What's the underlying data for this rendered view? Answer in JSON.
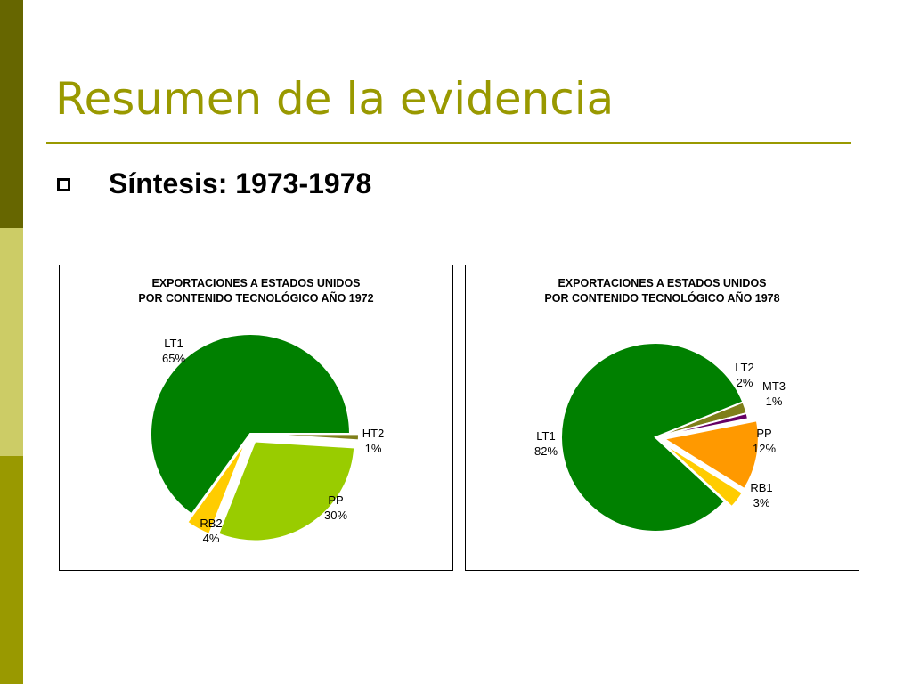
{
  "sidebar": {
    "colors": [
      "#666600",
      "#cccc66",
      "#999900"
    ]
  },
  "slide": {
    "title": "Resumen de la evidencia",
    "title_color": "#999900",
    "rule_color": "#999900",
    "bullet": "Síntesis: 1973-1978"
  },
  "chart_data": [
    {
      "type": "pie",
      "title": "EXPORTACIONES A ESTADOS UNIDOS",
      "subtitle": "POR CONTENIDO TECNOLÓGICO AÑO 1972",
      "start_angle_deg": 0,
      "slices": [
        {
          "label": "HT2",
          "value": 1,
          "display": "1%",
          "color": "#7f7f1a",
          "explode": 1
        },
        {
          "label": "PP",
          "value": 30,
          "display": "30%",
          "color": "#99cc00",
          "explode": 1
        },
        {
          "label": "RB2",
          "value": 4,
          "display": "4%",
          "color": "#ffcc00",
          "explode": 1
        },
        {
          "label": "LT1",
          "value": 65,
          "display": "65%",
          "color": "#008000",
          "explode": 0
        }
      ]
    },
    {
      "type": "pie",
      "title": "EXPORTACIONES A ESTADOS UNIDOS",
      "subtitle": "POR CONTENIDO TECNOLÓGICO AÑO 1978",
      "start_angle_deg": -22,
      "slices": [
        {
          "label": "LT2",
          "value": 2,
          "display": "2%",
          "color": "#7f7f1a",
          "explode": 0
        },
        {
          "label": "MT3",
          "value": 1,
          "display": "1%",
          "color": "#660066",
          "explode": 0
        },
        {
          "label": "PP",
          "value": 12,
          "display": "12%",
          "color": "#ff9900",
          "explode": 1
        },
        {
          "label": "RB1",
          "value": 3,
          "display": "3%",
          "color": "#ffcc00",
          "explode": 1
        },
        {
          "label": "LT1",
          "value": 82,
          "display": "82%",
          "color": "#008000",
          "explode": 0
        }
      ]
    }
  ]
}
